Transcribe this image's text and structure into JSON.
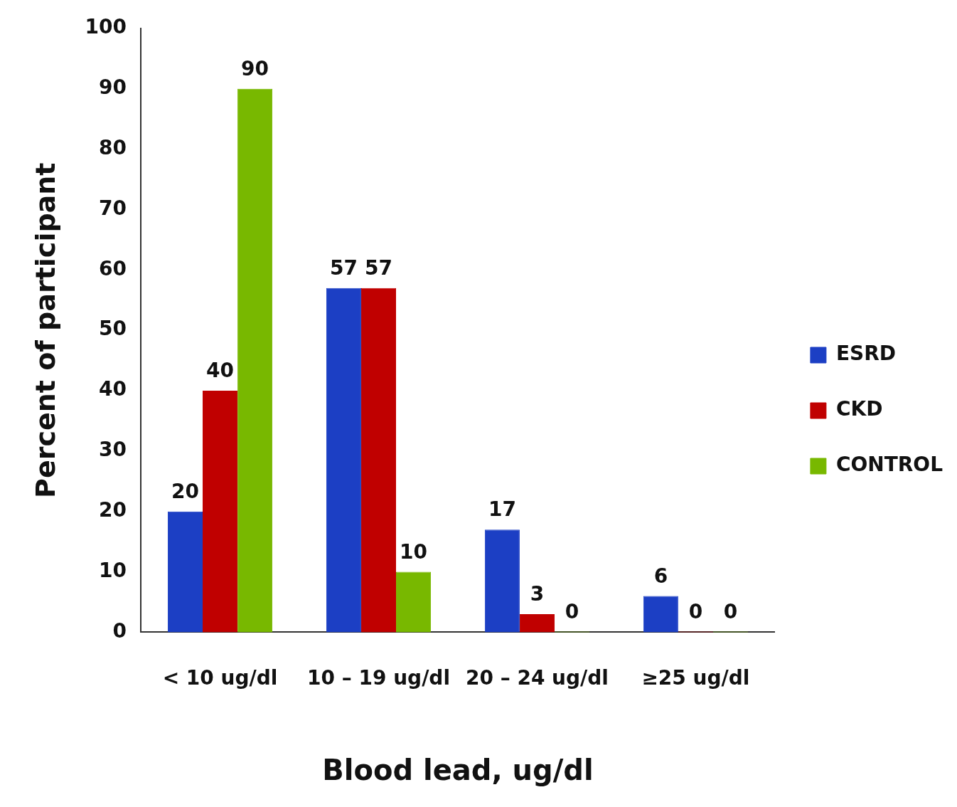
{
  "chart_data": {
    "type": "bar",
    "xlabel": "Blood lead, ug/dl",
    "ylabel": "Percent of participant",
    "categories": [
      "< 10 ug/dl",
      "10 – 19 ug/dl",
      "20 – 24 ug/dl",
      "≥25 ug/dl"
    ],
    "series": [
      {
        "name": "ESRD",
        "color": "#1c3fc4",
        "values": [
          20,
          57,
          17,
          6
        ]
      },
      {
        "name": "CKD",
        "color": "#c00000",
        "values": [
          40,
          57,
          3,
          0
        ]
      },
      {
        "name": "CONTROL",
        "color": "#78b800",
        "values": [
          90,
          10,
          0,
          0
        ]
      }
    ],
    "ylim": [
      0,
      100
    ],
    "yticks": [
      0,
      10,
      20,
      30,
      40,
      50,
      60,
      70,
      80,
      90,
      100
    ],
    "grid": false,
    "legend": "right",
    "data_labels": true
  }
}
